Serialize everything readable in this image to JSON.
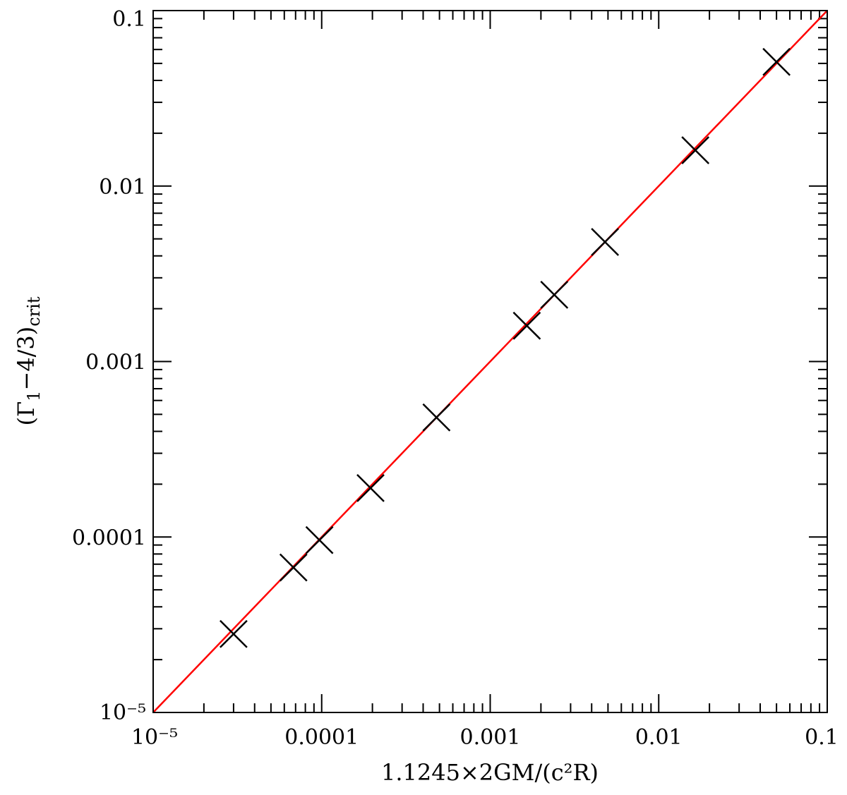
{
  "chart_data": {
    "type": "scatter",
    "x_scale": "log",
    "y_scale": "log",
    "xlim": [
      1e-05,
      0.1
    ],
    "ylim": [
      1e-05,
      0.1
    ],
    "xlabel": "1.1245×2GM/(c²R)",
    "ylabel": "(Γ1−4/3)crit",
    "x_tick_labels": [
      "10⁻⁵",
      "0.0001",
      "0.001",
      "0.01",
      "0.1"
    ],
    "y_tick_labels": [
      "10⁻⁵",
      "0.0001",
      "0.001",
      "0.01",
      "0.1"
    ],
    "x_ticks": [
      1e-05,
      0.0001,
      0.001,
      0.01,
      0.1
    ],
    "y_ticks": [
      1e-05,
      0.0001,
      0.001,
      0.01,
      0.1
    ],
    "grid": false,
    "series": [
      {
        "kind": "markers",
        "marker": "x",
        "color": "#000000",
        "x": [
          3e-05,
          6.8e-05,
          9.7e-05,
          0.000195,
          0.00048,
          0.00165,
          0.0024,
          0.0048,
          0.0165,
          0.05
        ],
        "y": [
          2.8e-05,
          6.7e-05,
          9.6e-05,
          0.00019,
          0.00048,
          0.0016,
          0.0024,
          0.0048,
          0.016,
          0.051
        ]
      },
      {
        "kind": "line",
        "color": "#ff0000",
        "x": [
          1e-05,
          0.1
        ],
        "y": [
          1e-05,
          0.1
        ]
      }
    ]
  }
}
